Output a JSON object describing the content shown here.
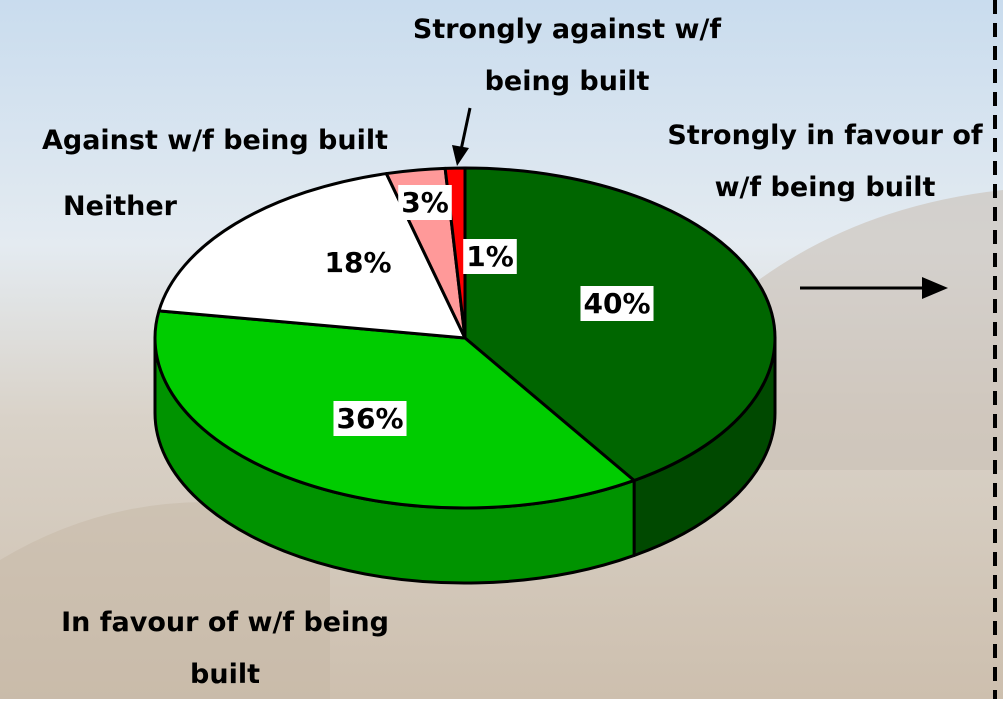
{
  "chart_data": {
    "type": "pie",
    "categories": [
      "Strongly in favour of w/f being built",
      "In favour of w/f being built",
      "Neither",
      "Against w/f being built",
      "Strongly against w/f being built"
    ],
    "values": [
      40,
      36,
      18,
      3,
      1
    ],
    "value_labels": [
      "40%",
      "36%",
      "18%",
      "3%",
      "1%"
    ],
    "colors": [
      "#006600",
      "#00cc00",
      "#ffffff",
      "#ff9999",
      "#ff0000"
    ]
  }
}
